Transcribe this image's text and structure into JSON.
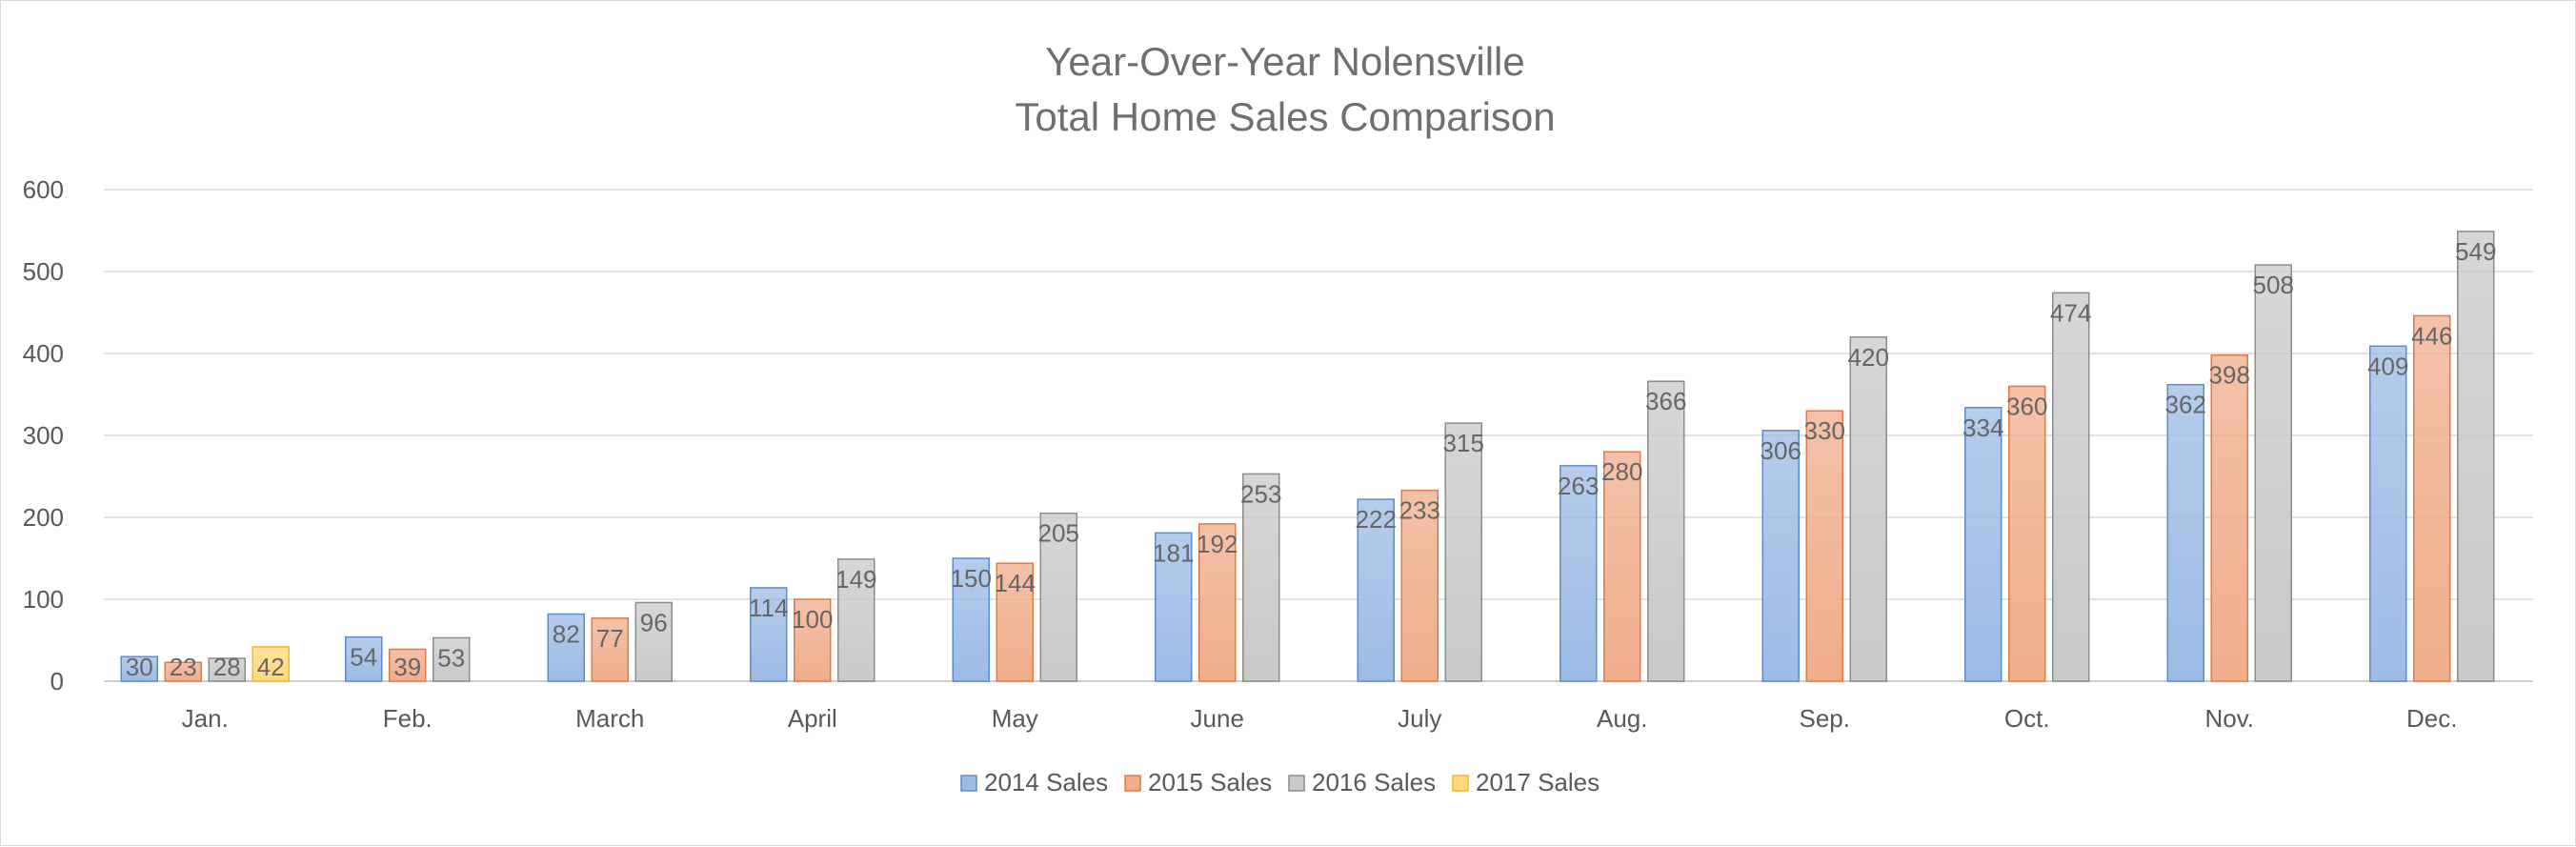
{
  "chart_data": {
    "type": "bar",
    "title": [
      "Year-Over-Year Nolensville",
      "Total Home Sales Comparison"
    ],
    "xlabel": "",
    "ylabel": "",
    "ylim": [
      0,
      600
    ],
    "yticks": [
      0,
      100,
      200,
      300,
      400,
      500,
      600
    ],
    "grid": true,
    "legend_position": "bottom",
    "categories": [
      "Jan.",
      "Feb.",
      "March",
      "April",
      "May",
      "June",
      "July",
      "Aug.",
      "Sep.",
      "Oct.",
      "Nov.",
      "Dec."
    ],
    "series": [
      {
        "name": "2014 Sales",
        "color": "#9dbbe5",
        "edge": "#5b8cd1",
        "values": [
          30,
          54,
          82,
          114,
          150,
          181,
          222,
          263,
          306,
          334,
          362,
          409
        ]
      },
      {
        "name": "2015 Sales",
        "color": "#f0ad8c",
        "edge": "#e07b45",
        "values": [
          23,
          39,
          77,
          100,
          144,
          192,
          233,
          280,
          330,
          360,
          398,
          446
        ]
      },
      {
        "name": "2016 Sales",
        "color": "#c9c9c9",
        "edge": "#8c8c8c",
        "values": [
          28,
          53,
          96,
          149,
          205,
          253,
          315,
          366,
          420,
          474,
          508,
          549
        ]
      },
      {
        "name": "2017 Sales",
        "color": "#ffd97a",
        "edge": "#f2b632",
        "values": [
          42,
          null,
          null,
          null,
          null,
          null,
          null,
          null,
          null,
          null,
          null,
          null
        ]
      }
    ]
  }
}
